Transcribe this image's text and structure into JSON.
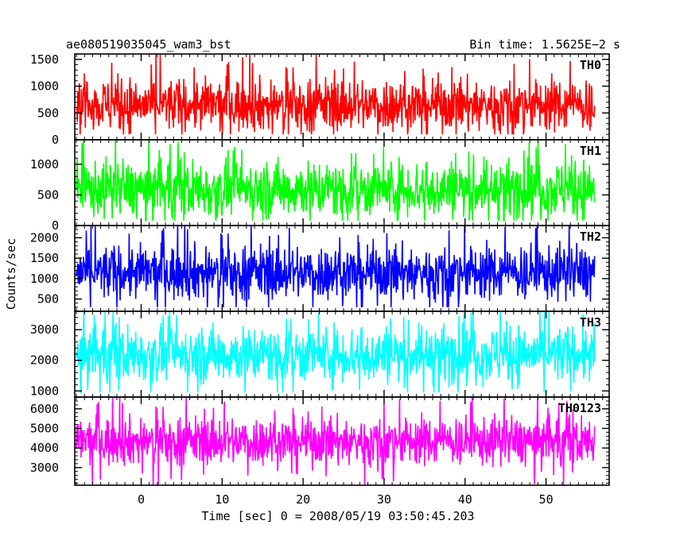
{
  "header": {
    "title": "ae080519035045_wam3_bst",
    "bin_time": "Bin time: 1.5625E−2 s"
  },
  "chart_data": {
    "type": "line",
    "ylabel": "Counts/sec",
    "xlabel": "Time [sec] 0 = 2008/05/19 03:50:45.203",
    "xlim": [
      -8.2,
      57.8
    ],
    "x_ticks": [
      0,
      10,
      20,
      30,
      40,
      50
    ],
    "x_tick_labels": [
      "0",
      "10",
      "20",
      "30",
      "40",
      "50"
    ],
    "data_x_range": [
      -8.0,
      56.0
    ],
    "bin_time_s": 0.015625,
    "panels": [
      {
        "name": "TH0",
        "color": "#ff0000",
        "ylim": [
          0,
          1600
        ],
        "y_ticks": [
          0,
          500,
          1000,
          1500
        ],
        "y_tick_labels": [
          "0",
          "500",
          "1000",
          "1500"
        ],
        "mean": 650,
        "spread": 280,
        "min": 100,
        "max": 1600
      },
      {
        "name": "TH1",
        "color": "#00ff00",
        "ylim": [
          0,
          1400
        ],
        "y_ticks": [
          0,
          500,
          1000
        ],
        "y_tick_labels": [
          "0",
          "500",
          "1000"
        ],
        "mean": 600,
        "spread": 260,
        "min": 80,
        "max": 1400
      },
      {
        "name": "TH2",
        "color": "#0000ff",
        "ylim": [
          200,
          2300
        ],
        "y_ticks": [
          500,
          1000,
          1500,
          2000
        ],
        "y_tick_labels": [
          "500",
          "1000",
          "1500",
          "2000"
        ],
        "mean": 1150,
        "spread": 380,
        "min": 300,
        "max": 2300
      },
      {
        "name": "TH3",
        "color": "#00ffff",
        "ylim": [
          800,
          3600
        ],
        "y_ticks": [
          1000,
          2000,
          3000
        ],
        "y_tick_labels": [
          "1000",
          "2000",
          "3000"
        ],
        "mean": 2200,
        "spread": 520,
        "min": 950,
        "max": 3600
      },
      {
        "name": "TH0123",
        "color": "#ff00ff",
        "ylim": [
          2100,
          6600
        ],
        "y_ticks": [
          3000,
          4000,
          5000,
          6000
        ],
        "y_tick_labels": [
          "3000",
          "4000",
          "5000",
          "6000"
        ],
        "mean": 4350,
        "spread": 700,
        "min": 2100,
        "max": 6600
      }
    ]
  }
}
